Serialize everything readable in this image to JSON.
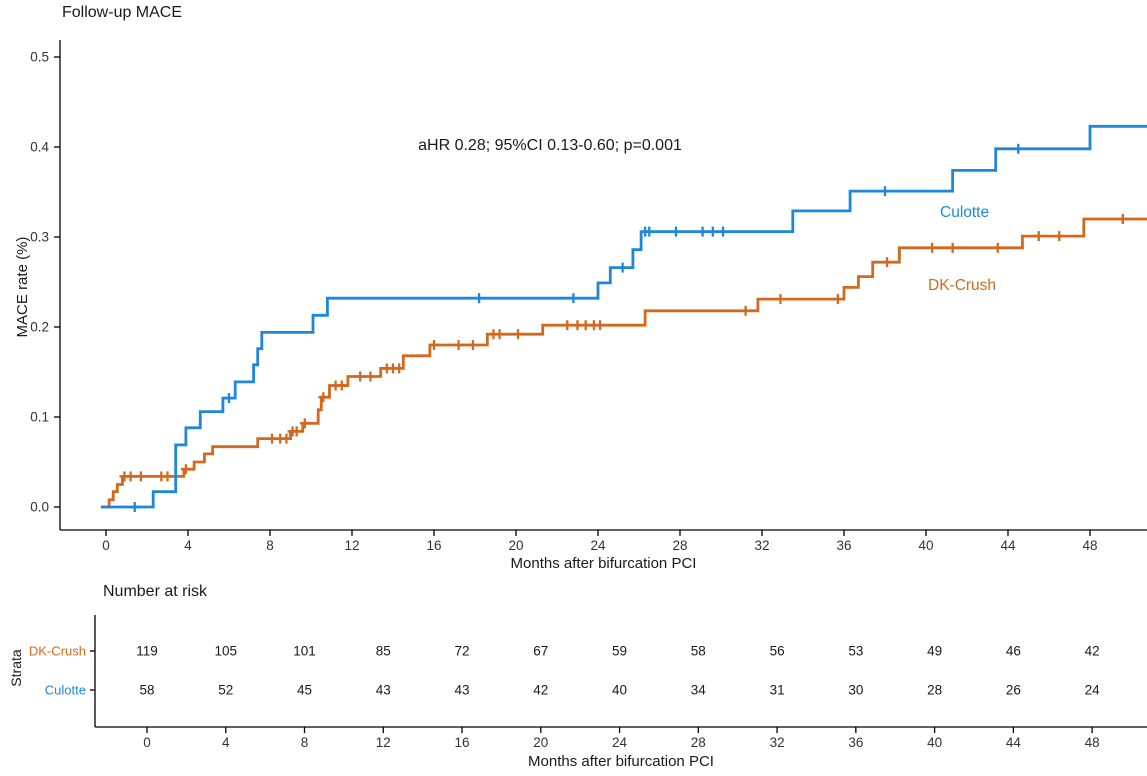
{
  "chart_data": {
    "type": "line",
    "subtype": "kaplan-meier-cumulative-incidence-step",
    "title": "Follow-up MACE",
    "annotation": "aHR 0.28; 95%CI 0.13-0.60; p=0.001",
    "xlabel": "Months after bifurcation PCI",
    "ylabel": "MACE rate (%)",
    "xlim": [
      -0.3,
      50.8
    ],
    "ylim": [
      0,
      0.5
    ],
    "xticks": [
      0,
      4,
      8,
      12,
      16,
      20,
      24,
      28,
      32,
      36,
      40,
      44,
      48
    ],
    "yticks": [
      "0.0",
      "0.1",
      "0.2",
      "0.3",
      "0.4",
      "0.5"
    ],
    "grid": false,
    "legend_position": "inline-curve-labels",
    "series": [
      {
        "name": "Culotte",
        "color": "#1E87DC",
        "end_month": 50.8,
        "steps": [
          [
            0,
            0
          ],
          [
            2.3,
            0.017
          ],
          [
            3.4,
            0.069
          ],
          [
            3.9,
            0.088
          ],
          [
            4.6,
            0.106
          ],
          [
            5.7,
            0.121
          ],
          [
            6.3,
            0.139
          ],
          [
            7.2,
            0.158
          ],
          [
            7.4,
            0.176
          ],
          [
            7.6,
            0.194
          ],
          [
            10.1,
            0.213
          ],
          [
            10.8,
            0.232
          ],
          [
            24.0,
            0.249
          ],
          [
            24.6,
            0.266
          ],
          [
            25.7,
            0.286
          ],
          [
            26.1,
            0.306
          ],
          [
            33.5,
            0.329
          ],
          [
            36.3,
            0.351
          ],
          [
            41.3,
            0.374
          ],
          [
            43.4,
            0.398
          ],
          [
            48.0,
            0.423
          ]
        ],
        "censors": [
          [
            1.4,
            0
          ],
          [
            6.0,
            0.121
          ],
          [
            18.2,
            0.232
          ],
          [
            22.8,
            0.232
          ],
          [
            25.2,
            0.266
          ],
          [
            26.3,
            0.306
          ],
          [
            26.5,
            0.306
          ],
          [
            27.8,
            0.306
          ],
          [
            29.1,
            0.306
          ],
          [
            29.6,
            0.306
          ],
          [
            30.1,
            0.306
          ],
          [
            38.0,
            0.351
          ],
          [
            44.5,
            0.398
          ]
        ]
      },
      {
        "name": "DK-Crush",
        "color": "#D2691E",
        "end_month": 50.8,
        "steps": [
          [
            0,
            0
          ],
          [
            0.15,
            0.008
          ],
          [
            0.35,
            0.017
          ],
          [
            0.55,
            0.025
          ],
          [
            0.8,
            0.034
          ],
          [
            3.8,
            0.042
          ],
          [
            4.3,
            0.05
          ],
          [
            4.8,
            0.059
          ],
          [
            5.2,
            0.067
          ],
          [
            7.4,
            0.076
          ],
          [
            9.0,
            0.084
          ],
          [
            9.6,
            0.093
          ],
          [
            10.35,
            0.108
          ],
          [
            10.5,
            0.122
          ],
          [
            10.9,
            0.135
          ],
          [
            11.8,
            0.145
          ],
          [
            13.4,
            0.154
          ],
          [
            14.5,
            0.168
          ],
          [
            15.8,
            0.18
          ],
          [
            18.6,
            0.192
          ],
          [
            21.3,
            0.202
          ],
          [
            26.3,
            0.218
          ],
          [
            31.8,
            0.231
          ],
          [
            36.0,
            0.244
          ],
          [
            36.7,
            0.256
          ],
          [
            37.4,
            0.272
          ],
          [
            38.7,
            0.288
          ],
          [
            44.7,
            0.301
          ],
          [
            47.7,
            0.32
          ]
        ],
        "censors": [
          [
            0.9,
            0.034
          ],
          [
            1.2,
            0.034
          ],
          [
            1.7,
            0.034
          ],
          [
            2.7,
            0.034
          ],
          [
            3.0,
            0.034
          ],
          [
            3.9,
            0.042
          ],
          [
            8.1,
            0.076
          ],
          [
            8.5,
            0.076
          ],
          [
            8.8,
            0.076
          ],
          [
            9.1,
            0.084
          ],
          [
            9.3,
            0.084
          ],
          [
            9.7,
            0.093
          ],
          [
            10.6,
            0.122
          ],
          [
            11.2,
            0.135
          ],
          [
            11.5,
            0.135
          ],
          [
            12.4,
            0.145
          ],
          [
            12.9,
            0.145
          ],
          [
            13.7,
            0.154
          ],
          [
            14.0,
            0.154
          ],
          [
            14.3,
            0.154
          ],
          [
            16.0,
            0.18
          ],
          [
            17.2,
            0.18
          ],
          [
            17.9,
            0.18
          ],
          [
            18.9,
            0.192
          ],
          [
            19.2,
            0.192
          ],
          [
            20.1,
            0.192
          ],
          [
            22.5,
            0.202
          ],
          [
            23.0,
            0.202
          ],
          [
            23.4,
            0.202
          ],
          [
            23.8,
            0.202
          ],
          [
            24.1,
            0.202
          ],
          [
            31.2,
            0.218
          ],
          [
            32.9,
            0.231
          ],
          [
            35.7,
            0.231
          ],
          [
            38.1,
            0.272
          ],
          [
            40.3,
            0.288
          ],
          [
            41.3,
            0.288
          ],
          [
            43.5,
            0.288
          ],
          [
            45.5,
            0.301
          ],
          [
            46.5,
            0.301
          ],
          [
            49.6,
            0.32
          ]
        ]
      }
    ],
    "risk_table": {
      "title": "Number at risk",
      "axis_label": "Strata",
      "xlabel": "Months after bifurcation PCI",
      "months": [
        0,
        4,
        8,
        12,
        16,
        20,
        24,
        28,
        32,
        36,
        40,
        44,
        48
      ],
      "rows": [
        {
          "name": "DK-Crush",
          "color": "#D2691E",
          "counts": [
            119,
            105,
            101,
            85,
            72,
            67,
            59,
            58,
            56,
            53,
            49,
            46,
            42
          ]
        },
        {
          "name": "Culotte",
          "color": "#1E87DC",
          "counts": [
            58,
            52,
            45,
            43,
            43,
            42,
            40,
            34,
            31,
            30,
            28,
            26,
            24
          ]
        }
      ]
    }
  }
}
